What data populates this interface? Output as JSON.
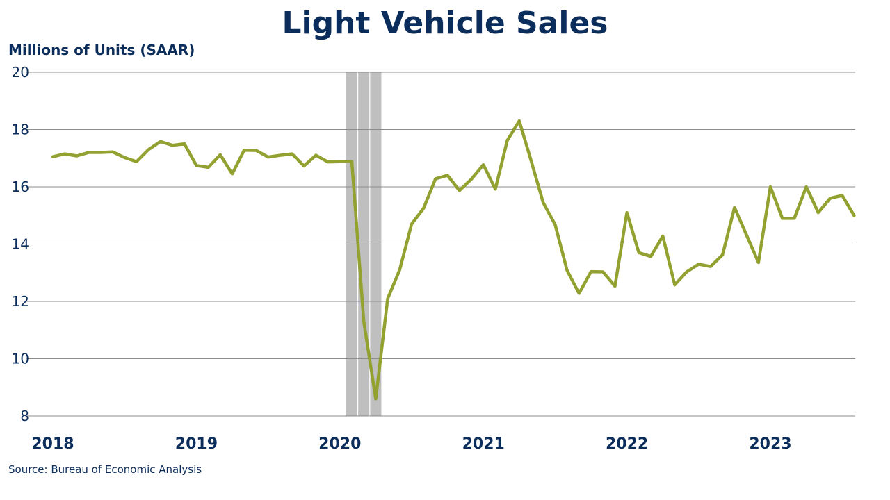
{
  "title": "Light Vehicle Sales",
  "y_unit_label": "Millions of Units (SAAR)",
  "source": "Source:  Bureau of Economic Analysis",
  "colors": {
    "title": "#0b2d5c",
    "line": "#92a12f",
    "recession_band": "#bfbfbf",
    "grid": "#8c8c8c"
  },
  "chart_data": {
    "type": "line",
    "title": "Light Vehicle Sales",
    "ylabel": "Millions of Units (SAAR)",
    "ylim": [
      8,
      20
    ],
    "yticks": [
      8,
      10,
      12,
      14,
      16,
      18,
      20
    ],
    "xticks": [
      "2018",
      "2019",
      "2020",
      "2021",
      "2022",
      "2023"
    ],
    "x_start": "2018-01",
    "x_end": "2023-08",
    "grid": true,
    "recession_shading": {
      "start": "2020-02",
      "end": "2020-04"
    },
    "series": [
      {
        "values": [
          17.05,
          17.15,
          17.08,
          17.2,
          17.2,
          17.22,
          17.02,
          16.88,
          17.3,
          17.58,
          17.45,
          17.5,
          16.75,
          16.68,
          17.12,
          16.45,
          17.28,
          17.27,
          17.04,
          17.1,
          17.15,
          16.73,
          17.1,
          16.87,
          16.88,
          16.88,
          11.3,
          8.6,
          12.1,
          13.1,
          14.7,
          15.25,
          16.28,
          16.4,
          15.87,
          16.27,
          16.77,
          15.92,
          17.62,
          18.3,
          16.9,
          15.45,
          14.68,
          13.08,
          12.28,
          13.04,
          13.03,
          12.53,
          15.1,
          13.7,
          13.57,
          14.28,
          12.58,
          13.03,
          13.3,
          13.22,
          13.63,
          15.28,
          14.32,
          13.36,
          16.0,
          14.9,
          14.9,
          16.0,
          15.1,
          15.6,
          15.7,
          15.0
        ]
      }
    ]
  }
}
